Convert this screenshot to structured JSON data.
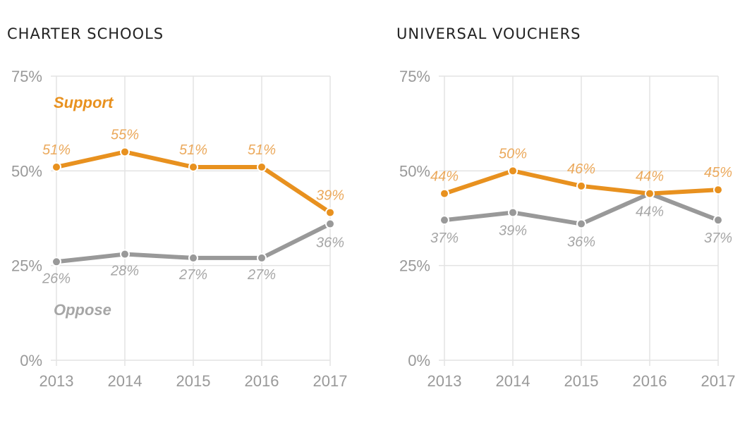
{
  "colors": {
    "support": "#E8911F",
    "support_label": "#EBA95C",
    "oppose": "#999999",
    "oppose_label": "#A6A6A6",
    "grid": "#E3E3E3",
    "axis_text": "#999999"
  },
  "chart_data": [
    {
      "type": "line",
      "title": "CHARTER SCHOOLS",
      "categories": [
        "2013",
        "2014",
        "2015",
        "2016",
        "2017"
      ],
      "ylim": [
        0,
        75
      ],
      "yticks": [
        "0%",
        "25%",
        "50%",
        "75%"
      ],
      "grid": true,
      "series": [
        {
          "name": "Support",
          "values": [
            51,
            55,
            51,
            51,
            39
          ],
          "labels": [
            "51%",
            "55%",
            "51%",
            "51%",
            "39%"
          ]
        },
        {
          "name": "Oppose",
          "values": [
            26,
            28,
            27,
            27,
            36
          ],
          "labels": [
            "26%",
            "28%",
            "27%",
            "27%",
            "36%"
          ]
        }
      ]
    },
    {
      "type": "line",
      "title": "UNIVERSAL VOUCHERS",
      "categories": [
        "2013",
        "2014",
        "2015",
        "2016",
        "2017"
      ],
      "ylim": [
        0,
        75
      ],
      "yticks": [
        "0%",
        "25%",
        "50%",
        "75%"
      ],
      "grid": true,
      "series": [
        {
          "name": "",
          "values": [
            44,
            50,
            46,
            44,
            45
          ],
          "labels": [
            "44%",
            "50%",
            "46%",
            "44%",
            "45%"
          ]
        },
        {
          "name": "",
          "values": [
            37,
            39,
            36,
            44,
            37
          ],
          "labels": [
            "37%",
            "39%",
            "36%",
            "44%",
            "37%"
          ]
        }
      ]
    }
  ]
}
